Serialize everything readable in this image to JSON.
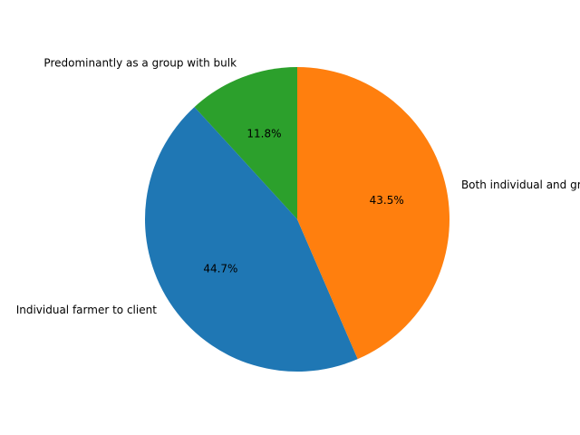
{
  "chart_data": {
    "type": "pie",
    "title": "",
    "start_angle_deg": 90,
    "direction": "counterclockwise",
    "slices": [
      {
        "label": "Predominantly as a group with bulk",
        "value": 11.8,
        "pct_label": "11.8%",
        "color": "#2ca02c"
      },
      {
        "label": "Individual farmer to client",
        "value": 44.7,
        "pct_label": "44.7%",
        "color": "#1f77b4"
      },
      {
        "label": "Both individual and group",
        "value": 43.5,
        "pct_label": "43.5%",
        "color": "#ff7f0e"
      }
    ]
  }
}
